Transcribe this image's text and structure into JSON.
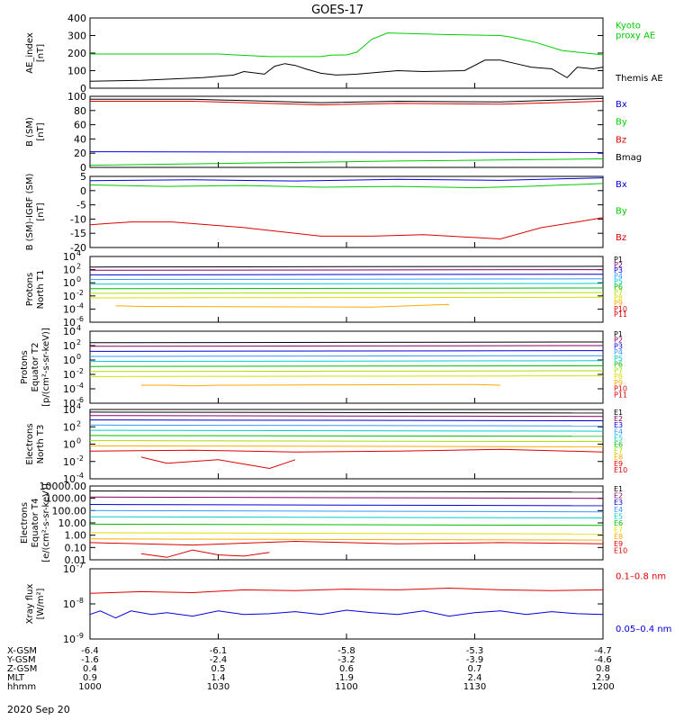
{
  "title": "GOES-17",
  "chart_data": [
    {
      "type": "line",
      "ylabel": "AE_index\n[nT]",
      "ylim": [
        0,
        400
      ],
      "ticks": [
        {
          "v": 0,
          "t": "0"
        },
        {
          "v": 100,
          "t": "100"
        },
        {
          "v": 200,
          "t": "200"
        },
        {
          "v": 300,
          "t": "300"
        },
        {
          "v": 400,
          "t": "400"
        }
      ],
      "series": [
        {
          "name": "Kyoto\nproxy AE",
          "color": "#00cc00",
          "x": [
            0,
            25,
            35,
            45,
            47,
            50,
            52,
            55,
            58,
            70,
            80,
            82,
            87,
            92,
            100
          ],
          "y": [
            195,
            195,
            180,
            180,
            188,
            190,
            205,
            280,
            315,
            305,
            300,
            292,
            260,
            215,
            190
          ]
        },
        {
          "name": "Themis AE",
          "color": "#000000",
          "x": [
            0,
            10,
            22,
            28,
            30,
            34,
            36,
            38,
            40,
            42,
            45,
            48,
            52,
            60,
            65,
            73,
            77,
            80,
            83,
            86,
            90,
            93,
            95,
            98,
            100
          ],
          "y": [
            40,
            45,
            60,
            75,
            95,
            80,
            125,
            140,
            130,
            110,
            85,
            75,
            80,
            100,
            95,
            100,
            160,
            160,
            140,
            120,
            110,
            60,
            120,
            110,
            120
          ]
        }
      ]
    },
    {
      "type": "line",
      "ylabel": "B (SM)\n[nT]",
      "ylim": [
        0,
        100
      ],
      "ticks": [
        {
          "v": 0,
          "t": "0"
        },
        {
          "v": 20,
          "t": "20"
        },
        {
          "v": 40,
          "t": "40"
        },
        {
          "v": 60,
          "t": "60"
        },
        {
          "v": 80,
          "t": "80"
        },
        {
          "v": 100,
          "t": "100"
        }
      ],
      "series": [
        {
          "name": "Bx",
          "color": "#0000dd",
          "x": [
            0,
            100
          ],
          "y": [
            22,
            21
          ]
        },
        {
          "name": "By",
          "color": "#00cc00",
          "x": [
            0,
            30,
            60,
            100
          ],
          "y": [
            3,
            6,
            9,
            12
          ]
        },
        {
          "name": "Bz",
          "color": "#dd0000",
          "x": [
            0,
            20,
            45,
            60,
            80,
            100
          ],
          "y": [
            93,
            93,
            88,
            90,
            89,
            93
          ]
        },
        {
          "name": "Bmag",
          "color": "#000000",
          "x": [
            0,
            20,
            45,
            60,
            80,
            100
          ],
          "y": [
            96,
            96,
            91,
            93,
            92,
            97
          ]
        }
      ]
    },
    {
      "type": "line",
      "ylabel": "B (SM)-IGRF (SM)\n[nT]",
      "ylim": [
        -20,
        5
      ],
      "ticks": [
        {
          "v": -20,
          "t": "-20"
        },
        {
          "v": -15,
          "t": "-15"
        },
        {
          "v": -10,
          "t": "-10"
        },
        {
          "v": -5,
          "t": "-5"
        },
        {
          "v": 0,
          "t": "0"
        },
        {
          "v": 5,
          "t": "5"
        }
      ],
      "series": [
        {
          "name": "Bx",
          "color": "#0000dd",
          "x": [
            0,
            20,
            40,
            60,
            80,
            100
          ],
          "y": [
            3.5,
            3.8,
            3.4,
            4,
            3.6,
            4.5
          ]
        },
        {
          "name": "By",
          "color": "#00cc00",
          "x": [
            0,
            15,
            30,
            45,
            60,
            75,
            85,
            100
          ],
          "y": [
            2,
            1.5,
            1.8,
            1.2,
            1.5,
            1,
            1.5,
            2.5
          ]
        },
        {
          "name": "Bz",
          "color": "#dd0000",
          "x": [
            0,
            8,
            16,
            30,
            45,
            55,
            65,
            75,
            80,
            88,
            95,
            100
          ],
          "y": [
            -12,
            -11,
            -11,
            -13,
            -16,
            -16,
            -15.5,
            -16.5,
            -17,
            -13,
            -11,
            -9.5
          ]
        }
      ]
    },
    {
      "type": "line",
      "ylabel": "Protons\nNorth T1",
      "log": true,
      "ylim": [
        -6,
        4
      ],
      "ticks": [
        {
          "v": -6,
          "t": "10",
          "e": "-6"
        },
        {
          "v": -4,
          "t": "10",
          "e": "-4"
        },
        {
          "v": -2,
          "t": "10",
          "e": "-2"
        },
        {
          "v": 0,
          "t": "10",
          "e": "0"
        },
        {
          "v": 2,
          "t": "10",
          "e": "2"
        },
        {
          "v": 4,
          "t": "10",
          "e": "4"
        }
      ],
      "series": [
        {
          "name": "P1",
          "color": "#000000",
          "x": [
            0,
            100
          ],
          "y": [
            2.4,
            2.5
          ]
        },
        {
          "name": "P2",
          "color": "#880066",
          "x": [
            0,
            100
          ],
          "y": [
            1.9,
            2.0
          ]
        },
        {
          "name": "P3",
          "color": "#0000dd",
          "x": [
            0,
            100
          ],
          "y": [
            1.2,
            1.3
          ]
        },
        {
          "name": "P4",
          "color": "#3399ff",
          "x": [
            0,
            100
          ],
          "y": [
            0.5,
            0.6
          ]
        },
        {
          "name": "P5",
          "color": "#00cccc",
          "x": [
            0,
            100
          ],
          "y": [
            -0.2,
            -0.1
          ]
        },
        {
          "name": "P6",
          "color": "#00bb00",
          "x": [
            0,
            100
          ],
          "y": [
            -0.9,
            -0.8
          ]
        },
        {
          "name": "P7",
          "color": "#aadd00",
          "x": [
            0,
            100
          ],
          "y": [
            -1.6,
            -1.5
          ]
        },
        {
          "name": "P8",
          "color": "#dddd00",
          "x": [
            0,
            100
          ],
          "y": [
            -2.3,
            -2.2
          ]
        },
        {
          "name": "P9",
          "color": "#ffaa00",
          "x": [
            5,
            10,
            55,
            70
          ],
          "y": [
            -3.5,
            -3.6,
            -3.7,
            -3.3
          ]
        },
        {
          "name": "P10",
          "color": "#dd0000",
          "x": [],
          "y": []
        },
        {
          "name": "P11",
          "color": "#dd0000",
          "x": [],
          "y": []
        }
      ]
    },
    {
      "type": "line",
      "ylabel": "Protons\nEquator T2\n[p/(cm²-s-sr-keV)]",
      "log": true,
      "ylim": [
        -6,
        4
      ],
      "ticks": [
        {
          "v": -6,
          "t": "10",
          "e": "-6"
        },
        {
          "v": -4,
          "t": "10",
          "e": "-4"
        },
        {
          "v": -2,
          "t": "10",
          "e": "-2"
        },
        {
          "v": 0,
          "t": "10",
          "e": "0"
        },
        {
          "v": 2,
          "t": "10",
          "e": "2"
        },
        {
          "v": 4,
          "t": "10",
          "e": "4"
        }
      ],
      "series": [
        {
          "name": "P1",
          "color": "#000000",
          "x": [
            0,
            100
          ],
          "y": [
            2.4,
            2.5
          ]
        },
        {
          "name": "P2",
          "color": "#880066",
          "x": [
            0,
            100
          ],
          "y": [
            1.9,
            2.0
          ]
        },
        {
          "name": "P3",
          "color": "#0000dd",
          "x": [
            0,
            100
          ],
          "y": [
            1.2,
            1.3
          ]
        },
        {
          "name": "P4",
          "color": "#3399ff",
          "x": [
            0,
            100
          ],
          "y": [
            0.5,
            0.6
          ]
        },
        {
          "name": "P5",
          "color": "#00cccc",
          "x": [
            0,
            100
          ],
          "y": [
            -0.2,
            -0.1
          ]
        },
        {
          "name": "P6",
          "color": "#00bb00",
          "x": [
            0,
            100
          ],
          "y": [
            -0.9,
            -0.8
          ]
        },
        {
          "name": "P7",
          "color": "#aadd00",
          "x": [
            0,
            100
          ],
          "y": [
            -1.6,
            -1.5
          ]
        },
        {
          "name": "P8",
          "color": "#dddd00",
          "x": [
            0,
            100
          ],
          "y": [
            -2.3,
            -2.2
          ]
        },
        {
          "name": "P9",
          "color": "#ffaa00",
          "x": [
            10,
            15,
            20,
            25,
            75,
            80
          ],
          "y": [
            -3.5,
            -3.5,
            -3.6,
            -3.5,
            -3.4,
            -3.5
          ]
        },
        {
          "name": "P10",
          "color": "#dd0000",
          "x": [],
          "y": []
        },
        {
          "name": "P11",
          "color": "#dd0000",
          "x": [],
          "y": []
        }
      ]
    },
    {
      "type": "line",
      "ylabel": "Electrons\nNorth T3",
      "log": true,
      "ylim": [
        -4,
        4
      ],
      "ticks": [
        {
          "v": -4,
          "t": "10",
          "e": "-4"
        },
        {
          "v": -2,
          "t": "10",
          "e": "-2"
        },
        {
          "v": 0,
          "t": "10",
          "e": "0"
        },
        {
          "v": 2,
          "t": "10",
          "e": "2"
        },
        {
          "v": 4,
          "t": "10",
          "e": "4"
        }
      ],
      "series": [
        {
          "name": "E1",
          "color": "#000000",
          "x": [
            0,
            100
          ],
          "y": [
            3.7,
            3.6
          ]
        },
        {
          "name": "E2",
          "color": "#880066",
          "x": [
            0,
            100
          ],
          "y": [
            3.3,
            3.2
          ]
        },
        {
          "name": "E3",
          "color": "#0000dd",
          "x": [
            0,
            100
          ],
          "y": [
            2.8,
            2.7
          ]
        },
        {
          "name": "E4",
          "color": "#3399ff",
          "x": [
            0,
            100
          ],
          "y": [
            2.2,
            2.1
          ]
        },
        {
          "name": "E5",
          "color": "#00cccc",
          "x": [
            0,
            100
          ],
          "y": [
            1.6,
            1.5
          ]
        },
        {
          "name": "E6",
          "color": "#00bb00",
          "x": [
            0,
            100
          ],
          "y": [
            1.0,
            0.9
          ]
        },
        {
          "name": "E7",
          "color": "#aadd00",
          "x": [
            0,
            100
          ],
          "y": [
            0.4,
            0.3
          ]
        },
        {
          "name": "E8",
          "color": "#ffaa00",
          "x": [
            0,
            100
          ],
          "y": [
            -0.2,
            -0.3
          ]
        },
        {
          "name": "E9",
          "color": "#dd0000",
          "x": [
            0,
            20,
            40,
            60,
            80,
            100
          ],
          "y": [
            -0.8,
            -0.7,
            -0.9,
            -0.8,
            -0.6,
            -0.9
          ]
        },
        {
          "name": "E10",
          "color": "#dd0000",
          "x": [
            10,
            15,
            25,
            30,
            35,
            40
          ],
          "y": [
            -1.5,
            -2.2,
            -1.8,
            -2.3,
            -2.8,
            -1.8
          ]
        }
      ]
    },
    {
      "type": "line",
      "ylabel": "Electrons\nEquator T4\n[e/(cm²-s-sr-keV)]",
      "log": true,
      "ylim": [
        -2,
        4
      ],
      "ticks": [
        {
          "v": -2,
          "t": "0.01"
        },
        {
          "v": -1,
          "t": "0.10"
        },
        {
          "v": 0,
          "t": "1.00"
        },
        {
          "v": 1,
          "t": "10.00"
        },
        {
          "v": 2,
          "t": "100.00"
        },
        {
          "v": 3,
          "t": "1000.00"
        },
        {
          "v": 4,
          "t": "10000.00"
        }
      ],
      "series": [
        {
          "name": "E1",
          "color": "#000000",
          "x": [
            0,
            100
          ],
          "y": [
            3.6,
            3.5
          ]
        },
        {
          "name": "E2",
          "color": "#880066",
          "x": [
            0,
            100
          ],
          "y": [
            3.1,
            3.0
          ]
        },
        {
          "name": "E3",
          "color": "#0000dd",
          "x": [
            0,
            100
          ],
          "y": [
            2.5,
            2.4
          ]
        },
        {
          "name": "E4",
          "color": "#3399ff",
          "x": [
            0,
            100
          ],
          "y": [
            2.0,
            1.9
          ]
        },
        {
          "name": "E5",
          "color": "#00cccc",
          "x": [
            0,
            100
          ],
          "y": [
            1.5,
            1.4
          ]
        },
        {
          "name": "E6",
          "color": "#00bb00",
          "x": [
            0,
            100
          ],
          "y": [
            0.9,
            0.8
          ]
        },
        {
          "name": "E7",
          "color": "#dddd00",
          "x": [
            0,
            100
          ],
          "y": [
            0.2,
            0.1
          ]
        },
        {
          "name": "E8",
          "color": "#ffaa00",
          "x": [
            0,
            100
          ],
          "y": [
            -0.3,
            -0.4
          ]
        },
        {
          "name": "E9",
          "color": "#dd0000",
          "x": [
            0,
            20,
            40,
            60,
            80,
            100
          ],
          "y": [
            -0.6,
            -0.8,
            -0.5,
            -0.7,
            -0.6,
            -0.7
          ]
        },
        {
          "name": "E10",
          "color": "#dd0000",
          "x": [
            10,
            15,
            20,
            25,
            30,
            35
          ],
          "y": [
            -1.5,
            -1.8,
            -1.2,
            -1.6,
            -1.7,
            -1.4
          ]
        }
      ]
    },
    {
      "type": "line",
      "ylabel": "Xray flux\n[W/m²]",
      "log": true,
      "ylim": [
        -9,
        -7
      ],
      "ticks": [
        {
          "v": -9,
          "t": "10",
          "e": "-9"
        },
        {
          "v": -8,
          "t": "10",
          "e": "-8"
        },
        {
          "v": -7,
          "t": "10",
          "e": "-7"
        }
      ],
      "series": [
        {
          "name": "0.1–0.8 nm",
          "color": "#dd0000",
          "x": [
            0,
            10,
            20,
            30,
            40,
            50,
            60,
            70,
            80,
            90,
            100
          ],
          "y": [
            -7.7,
            -7.65,
            -7.68,
            -7.6,
            -7.62,
            -7.58,
            -7.6,
            -7.55,
            -7.6,
            -7.62,
            -7.6
          ]
        },
        {
          "name": "0.05–0.4 nm",
          "color": "#0000dd",
          "x": [
            0,
            2,
            5,
            8,
            12,
            15,
            20,
            25,
            30,
            35,
            40,
            45,
            50,
            55,
            60,
            65,
            70,
            75,
            80,
            85,
            90,
            95,
            100
          ],
          "y": [
            -8.3,
            -8.2,
            -8.4,
            -8.2,
            -8.3,
            -8.25,
            -8.35,
            -8.2,
            -8.3,
            -8.28,
            -8.22,
            -8.3,
            -8.18,
            -8.25,
            -8.3,
            -8.2,
            -8.35,
            -8.25,
            -8.2,
            -8.3,
            -8.22,
            -8.28,
            -8.3
          ]
        }
      ]
    }
  ],
  "xaxis": {
    "labels": [
      "X-GSM",
      "Y-GSM",
      "Z-GSM",
      "MLT",
      "hhmm"
    ],
    "columns": [
      {
        "values": [
          "-6.4",
          "-1.6",
          "0.4",
          "0.9",
          "1000"
        ]
      },
      {
        "values": [
          "-6.1",
          "-2.4",
          "0.5",
          "1.4",
          "1030"
        ]
      },
      {
        "values": [
          "-5.8",
          "-3.2",
          "0.6",
          "1.9",
          "1100"
        ]
      },
      {
        "values": [
          "-5.3",
          "-3.9",
          "0.7",
          "2.4",
          "1130"
        ]
      },
      {
        "values": [
          "-4.7",
          "-4.6",
          "0.8",
          "2.9",
          "1200"
        ]
      }
    ],
    "date": "2020 Sep 20"
  }
}
